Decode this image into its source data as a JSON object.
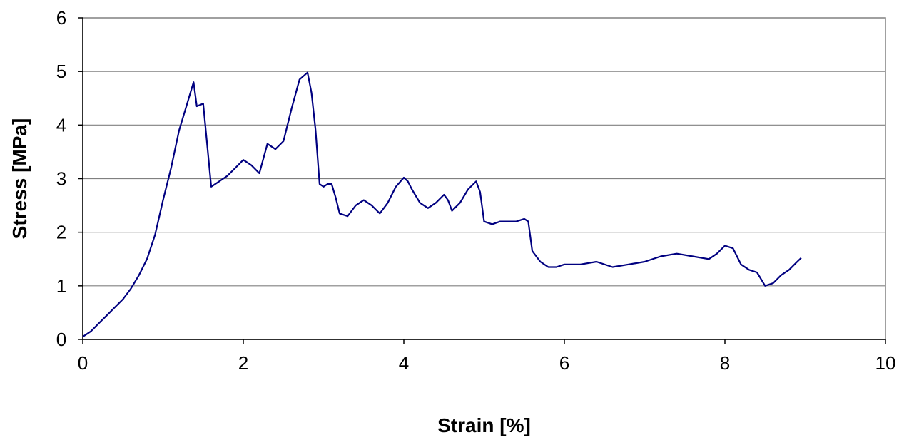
{
  "chart_data": {
    "type": "line",
    "title": "",
    "xlabel": "Strain [%]",
    "ylabel": "Stress [MPa]",
    "xlim": [
      0,
      10
    ],
    "ylim": [
      0,
      6
    ],
    "xticks": [
      "0",
      "2",
      "4",
      "6",
      "8",
      "10"
    ],
    "yticks": [
      "0",
      "1",
      "2",
      "3",
      "4",
      "5",
      "6"
    ],
    "grid": "horizontal",
    "legend": "none",
    "line_color": "#000080",
    "series": [
      {
        "x": [
          0,
          0.1,
          0.2,
          0.3,
          0.4,
          0.5,
          0.6,
          0.7,
          0.8,
          0.9,
          1.0,
          1.1,
          1.2,
          1.3,
          1.38,
          1.42,
          1.5,
          1.6,
          1.7,
          1.8,
          1.9,
          2.0,
          2.1,
          2.2,
          2.3,
          2.4,
          2.5,
          2.6,
          2.7,
          2.8,
          2.85,
          2.9,
          2.95,
          3.0,
          3.05,
          3.1,
          3.15,
          3.2,
          3.3,
          3.4,
          3.5,
          3.6,
          3.7,
          3.8,
          3.9,
          4.0,
          4.05,
          4.1,
          4.2,
          4.3,
          4.4,
          4.5,
          4.55,
          4.6,
          4.7,
          4.8,
          4.9,
          4.95,
          5.0,
          5.1,
          5.2,
          5.3,
          5.4,
          5.5,
          5.55,
          5.6,
          5.7,
          5.8,
          5.9,
          6.0,
          6.2,
          6.4,
          6.6,
          6.8,
          7.0,
          7.2,
          7.4,
          7.6,
          7.8,
          7.9,
          8.0,
          8.1,
          8.2,
          8.3,
          8.4,
          8.5,
          8.6,
          8.7,
          8.8,
          8.9,
          8.95
        ],
        "y": [
          0.05,
          0.15,
          0.3,
          0.45,
          0.6,
          0.75,
          0.95,
          1.2,
          1.5,
          1.95,
          2.6,
          3.2,
          3.9,
          4.4,
          4.8,
          4.35,
          4.4,
          2.85,
          2.95,
          3.05,
          3.2,
          3.35,
          3.25,
          3.1,
          3.65,
          3.55,
          3.7,
          4.3,
          4.85,
          4.98,
          4.6,
          3.9,
          2.9,
          2.85,
          2.9,
          2.9,
          2.65,
          2.35,
          2.3,
          2.5,
          2.6,
          2.5,
          2.35,
          2.55,
          2.85,
          3.02,
          2.95,
          2.8,
          2.55,
          2.45,
          2.55,
          2.7,
          2.6,
          2.4,
          2.55,
          2.8,
          2.95,
          2.75,
          2.2,
          2.15,
          2.2,
          2.2,
          2.2,
          2.25,
          2.2,
          1.65,
          1.45,
          1.35,
          1.35,
          1.4,
          1.4,
          1.45,
          1.35,
          1.4,
          1.45,
          1.55,
          1.6,
          1.55,
          1.5,
          1.6,
          1.75,
          1.7,
          1.4,
          1.3,
          1.25,
          1.0,
          1.05,
          1.2,
          1.3,
          1.45,
          1.52
        ]
      }
    ]
  }
}
